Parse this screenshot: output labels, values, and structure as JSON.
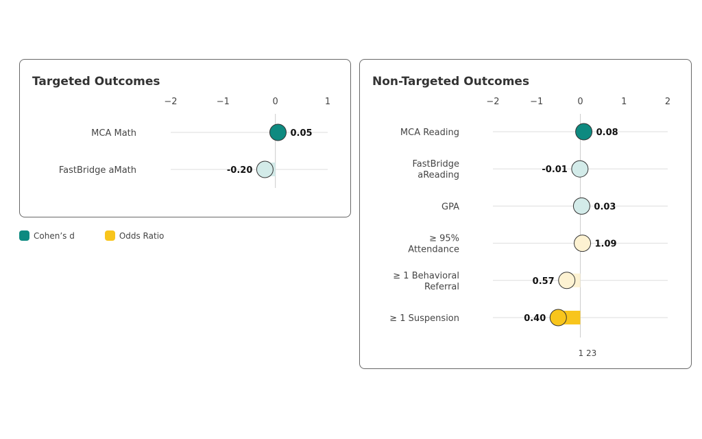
{
  "colors": {
    "d_sig": "#0e8a80",
    "d_nonsig": "#d3ebe9",
    "or_sig": "#f8c51c",
    "or_nonsig": "#fdf2d2",
    "zero": "#cccccc",
    "grid": "#dddddd"
  },
  "legend": [
    {
      "label": "Cohen’s d",
      "color": "#0e8a80"
    },
    {
      "label": "Odds Ratio",
      "color": "#f8c51c"
    }
  ],
  "chart_data": [
    {
      "type": "dot",
      "title": "Targeted Outcomes",
      "xlim": [
        -2,
        1
      ],
      "ticks": [
        "−2",
        "−1",
        "0",
        "1"
      ],
      "tick_values": [
        -2,
        -1,
        0,
        1
      ],
      "rows": [
        {
          "label": [
            "MCA Math"
          ],
          "value": 0.05,
          "value_label": "0.05",
          "measure": "d",
          "significant": true
        },
        {
          "label": [
            "FastBridge aMath"
          ],
          "value": -0.2,
          "value_label": "-0.20",
          "measure": "d",
          "significant": false
        }
      ]
    },
    {
      "type": "dot",
      "title": "Non-Targeted Outcomes",
      "xlim": [
        -2,
        2
      ],
      "ticks": [
        "−2",
        "−1",
        "0",
        "1",
        "2"
      ],
      "tick_values": [
        -2,
        -1,
        0,
        1,
        2
      ],
      "bottom_label": "1 23",
      "rows": [
        {
          "label": [
            "MCA Reading"
          ],
          "value": 0.08,
          "value_label": "0.08",
          "measure": "d",
          "significant": true
        },
        {
          "label": [
            "FastBridge",
            "aReading"
          ],
          "value": -0.01,
          "value_label": "-0.01",
          "measure": "d",
          "significant": false
        },
        {
          "label": [
            "GPA"
          ],
          "value": 0.03,
          "value_label": "0.03",
          "measure": "d",
          "significant": false
        },
        {
          "label": [
            "≥ 95%",
            "Attendance"
          ],
          "value": 1.09,
          "value_label": "1.09",
          "measure": "or",
          "significant": false
        },
        {
          "label": [
            "≥ 1 Behavioral",
            "Referral"
          ],
          "value": 0.57,
          "value_label": "0.57",
          "measure": "or",
          "significant": false
        },
        {
          "label": [
            "≥ 1 Suspension"
          ],
          "value": 0.4,
          "value_label": "0.40",
          "measure": "or",
          "significant": true
        }
      ]
    }
  ]
}
